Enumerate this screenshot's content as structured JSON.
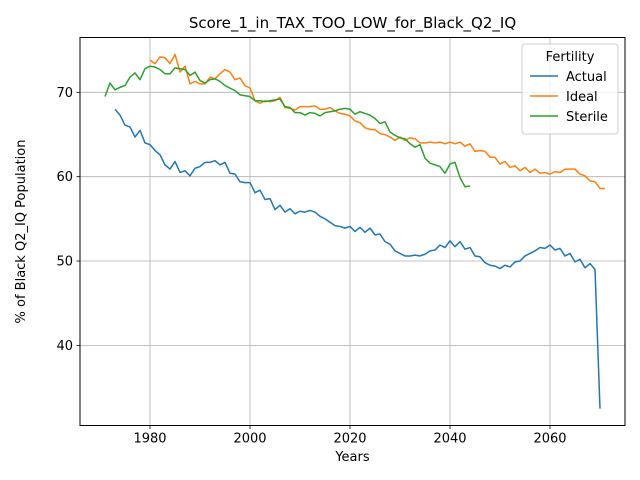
{
  "chart_data": {
    "type": "line",
    "title": "Score_1_in_TAX_TOO_LOW_for_Black_Q2_IQ",
    "xlabel": "Years",
    "ylabel": "% of Black Q2_IQ Population",
    "xlim": [
      1966,
      2075
    ],
    "ylim": [
      30.5,
      76.5
    ],
    "xticks": [
      1980,
      2000,
      2020,
      2040,
      2060
    ],
    "yticks": [
      40,
      50,
      60,
      70
    ],
    "grid": true,
    "legend": {
      "title": "Fertility",
      "position": "top-right"
    },
    "series": [
      {
        "name": "Actual",
        "color": "#1f77b4",
        "points": [
          [
            1973,
            68.0
          ],
          [
            1974,
            67.3
          ],
          [
            1975,
            66.1
          ],
          [
            1976,
            65.9
          ],
          [
            1977,
            64.7
          ],
          [
            1978,
            65.5
          ],
          [
            1979,
            64.0
          ],
          [
            1980,
            63.8
          ],
          [
            1981,
            63.1
          ],
          [
            1982,
            62.6
          ],
          [
            1983,
            61.4
          ],
          [
            1984,
            60.9
          ],
          [
            1985,
            61.8
          ],
          [
            1986,
            60.5
          ],
          [
            1987,
            60.7
          ],
          [
            1988,
            60.1
          ],
          [
            1989,
            61.0
          ],
          [
            1990,
            61.2
          ],
          [
            1991,
            61.7
          ],
          [
            1992,
            61.7
          ],
          [
            1993,
            61.9
          ],
          [
            1994,
            61.4
          ],
          [
            1995,
            61.7
          ],
          [
            1996,
            60.4
          ],
          [
            1997,
            60.3
          ],
          [
            1998,
            59.4
          ],
          [
            1999,
            59.3
          ],
          [
            2000,
            59.3
          ],
          [
            2001,
            58.1
          ],
          [
            2002,
            58.4
          ],
          [
            2003,
            57.3
          ],
          [
            2004,
            57.4
          ],
          [
            2005,
            56.1
          ],
          [
            2006,
            56.6
          ],
          [
            2007,
            55.8
          ],
          [
            2008,
            56.2
          ],
          [
            2009,
            55.6
          ],
          [
            2010,
            55.9
          ],
          [
            2011,
            55.8
          ],
          [
            2012,
            56.0
          ],
          [
            2013,
            55.8
          ],
          [
            2014,
            55.3
          ],
          [
            2015,
            55.0
          ],
          [
            2016,
            54.6
          ],
          [
            2017,
            54.2
          ],
          [
            2018,
            54.1
          ],
          [
            2019,
            53.9
          ],
          [
            2020,
            54.1
          ],
          [
            2021,
            53.5
          ],
          [
            2022,
            54.0
          ],
          [
            2023,
            53.4
          ],
          [
            2024,
            53.9
          ],
          [
            2025,
            53.1
          ],
          [
            2026,
            53.2
          ],
          [
            2027,
            52.3
          ],
          [
            2028,
            52.0
          ],
          [
            2029,
            51.2
          ],
          [
            2030,
            50.9
          ],
          [
            2031,
            50.6
          ],
          [
            2032,
            50.6
          ],
          [
            2033,
            50.7
          ],
          [
            2034,
            50.6
          ],
          [
            2035,
            50.8
          ],
          [
            2036,
            51.2
          ],
          [
            2037,
            51.3
          ],
          [
            2038,
            51.9
          ],
          [
            2039,
            51.6
          ],
          [
            2040,
            52.4
          ],
          [
            2041,
            51.7
          ],
          [
            2042,
            52.3
          ],
          [
            2043,
            51.4
          ],
          [
            2044,
            51.6
          ],
          [
            2045,
            50.6
          ],
          [
            2046,
            50.5
          ],
          [
            2047,
            49.8
          ],
          [
            2048,
            49.5
          ],
          [
            2049,
            49.4
          ],
          [
            2050,
            49.1
          ],
          [
            2051,
            49.5
          ],
          [
            2052,
            49.3
          ],
          [
            2053,
            49.9
          ],
          [
            2054,
            50.0
          ],
          [
            2055,
            50.6
          ],
          [
            2056,
            50.9
          ],
          [
            2057,
            51.2
          ],
          [
            2058,
            51.6
          ],
          [
            2059,
            51.5
          ],
          [
            2060,
            51.9
          ],
          [
            2061,
            51.3
          ],
          [
            2062,
            51.5
          ],
          [
            2063,
            50.6
          ],
          [
            2064,
            50.9
          ],
          [
            2065,
            49.9
          ],
          [
            2066,
            50.2
          ],
          [
            2067,
            49.2
          ],
          [
            2068,
            49.7
          ],
          [
            2069,
            49.0
          ],
          [
            2070,
            32.5
          ]
        ]
      },
      {
        "name": "Ideal",
        "color": "#ff7f0e",
        "points": [
          [
            1980,
            73.8
          ],
          [
            1981,
            73.4
          ],
          [
            1982,
            74.2
          ],
          [
            1983,
            74.1
          ],
          [
            1984,
            73.4
          ],
          [
            1985,
            74.5
          ],
          [
            1986,
            72.4
          ],
          [
            1987,
            73.1
          ],
          [
            1988,
            71.0
          ],
          [
            1989,
            71.3
          ],
          [
            1990,
            71.0
          ],
          [
            1991,
            71.0
          ],
          [
            1992,
            71.8
          ],
          [
            1993,
            71.6
          ],
          [
            1994,
            72.2
          ],
          [
            1995,
            72.7
          ],
          [
            1996,
            72.4
          ],
          [
            1997,
            71.5
          ],
          [
            1998,
            71.7
          ],
          [
            1999,
            70.8
          ],
          [
            2000,
            70.5
          ],
          [
            2001,
            69.0
          ],
          [
            2002,
            68.7
          ],
          [
            2003,
            69.0
          ],
          [
            2004,
            68.9
          ],
          [
            2005,
            69.0
          ],
          [
            2006,
            69.4
          ],
          [
            2007,
            68.2
          ],
          [
            2008,
            68.1
          ],
          [
            2009,
            67.9
          ],
          [
            2010,
            68.3
          ],
          [
            2011,
            68.3
          ],
          [
            2012,
            68.3
          ],
          [
            2013,
            68.4
          ],
          [
            2014,
            68.0
          ],
          [
            2015,
            68.0
          ],
          [
            2016,
            68.2
          ],
          [
            2017,
            67.8
          ],
          [
            2018,
            67.5
          ],
          [
            2019,
            67.4
          ],
          [
            2020,
            67.2
          ],
          [
            2021,
            66.6
          ],
          [
            2022,
            66.4
          ],
          [
            2023,
            65.8
          ],
          [
            2024,
            65.6
          ],
          [
            2025,
            65.6
          ],
          [
            2026,
            65.1
          ],
          [
            2027,
            65.0
          ],
          [
            2028,
            64.7
          ],
          [
            2029,
            64.3
          ],
          [
            2030,
            64.7
          ],
          [
            2031,
            64.3
          ],
          [
            2032,
            64.6
          ],
          [
            2033,
            64.5
          ],
          [
            2034,
            64.0
          ],
          [
            2035,
            64.0
          ],
          [
            2036,
            64.1
          ],
          [
            2037,
            64.0
          ],
          [
            2038,
            64.1
          ],
          [
            2039,
            63.9
          ],
          [
            2040,
            64.1
          ],
          [
            2041,
            63.9
          ],
          [
            2042,
            64.1
          ],
          [
            2043,
            63.6
          ],
          [
            2044,
            63.9
          ],
          [
            2045,
            63.0
          ],
          [
            2046,
            63.1
          ],
          [
            2047,
            63.0
          ],
          [
            2048,
            62.3
          ],
          [
            2049,
            62.3
          ],
          [
            2050,
            61.5
          ],
          [
            2051,
            61.8
          ],
          [
            2052,
            61.1
          ],
          [
            2053,
            61.3
          ],
          [
            2054,
            60.7
          ],
          [
            2055,
            61.1
          ],
          [
            2056,
            60.5
          ],
          [
            2057,
            60.9
          ],
          [
            2058,
            60.4
          ],
          [
            2059,
            60.5
          ],
          [
            2060,
            60.3
          ],
          [
            2061,
            60.6
          ],
          [
            2062,
            60.5
          ],
          [
            2063,
            60.9
          ],
          [
            2064,
            60.9
          ],
          [
            2065,
            60.9
          ],
          [
            2066,
            60.3
          ],
          [
            2067,
            60.1
          ],
          [
            2068,
            59.5
          ],
          [
            2069,
            59.4
          ],
          [
            2070,
            58.6
          ],
          [
            2071,
            58.6
          ]
        ]
      },
      {
        "name": "Sterile",
        "color": "#2ca02c",
        "points": [
          [
            1971,
            69.5
          ],
          [
            1972,
            71.1
          ],
          [
            1973,
            70.3
          ],
          [
            1974,
            70.6
          ],
          [
            1975,
            70.8
          ],
          [
            1976,
            71.8
          ],
          [
            1977,
            72.3
          ],
          [
            1978,
            71.5
          ],
          [
            1979,
            72.8
          ],
          [
            1980,
            73.1
          ],
          [
            1981,
            73.0
          ],
          [
            1982,
            72.7
          ],
          [
            1983,
            72.2
          ],
          [
            1984,
            72.2
          ],
          [
            1985,
            72.9
          ],
          [
            1986,
            72.8
          ],
          [
            1987,
            72.7
          ],
          [
            1988,
            72.0
          ],
          [
            1989,
            72.4
          ],
          [
            1990,
            71.4
          ],
          [
            1991,
            71.1
          ],
          [
            1992,
            71.5
          ],
          [
            1993,
            71.6
          ],
          [
            1994,
            71.3
          ],
          [
            1995,
            70.8
          ],
          [
            1996,
            70.5
          ],
          [
            1997,
            70.2
          ],
          [
            1998,
            69.7
          ],
          [
            1999,
            69.6
          ],
          [
            2000,
            69.5
          ],
          [
            2001,
            69.0
          ],
          [
            2002,
            69.0
          ],
          [
            2003,
            68.9
          ],
          [
            2004,
            69.0
          ],
          [
            2005,
            69.1
          ],
          [
            2006,
            69.2
          ],
          [
            2007,
            68.3
          ],
          [
            2008,
            68.2
          ],
          [
            2009,
            67.6
          ],
          [
            2010,
            67.6
          ],
          [
            2011,
            67.3
          ],
          [
            2012,
            67.6
          ],
          [
            2013,
            67.5
          ],
          [
            2014,
            67.2
          ],
          [
            2015,
            67.6
          ],
          [
            2016,
            67.7
          ],
          [
            2017,
            67.8
          ],
          [
            2018,
            68.0
          ],
          [
            2019,
            68.1
          ],
          [
            2020,
            68.0
          ],
          [
            2021,
            67.4
          ],
          [
            2022,
            67.7
          ],
          [
            2023,
            67.5
          ],
          [
            2024,
            67.3
          ],
          [
            2025,
            66.9
          ],
          [
            2026,
            66.3
          ],
          [
            2027,
            66.5
          ],
          [
            2028,
            65.3
          ],
          [
            2029,
            64.9
          ],
          [
            2030,
            64.6
          ],
          [
            2031,
            64.5
          ],
          [
            2032,
            63.9
          ],
          [
            2033,
            63.5
          ],
          [
            2034,
            63.8
          ],
          [
            2035,
            62.2
          ],
          [
            2036,
            61.6
          ],
          [
            2037,
            61.4
          ],
          [
            2038,
            61.2
          ],
          [
            2039,
            60.4
          ],
          [
            2040,
            61.5
          ],
          [
            2041,
            61.7
          ],
          [
            2042,
            59.9
          ],
          [
            2043,
            58.8
          ],
          [
            2044,
            58.9
          ]
        ]
      }
    ]
  }
}
